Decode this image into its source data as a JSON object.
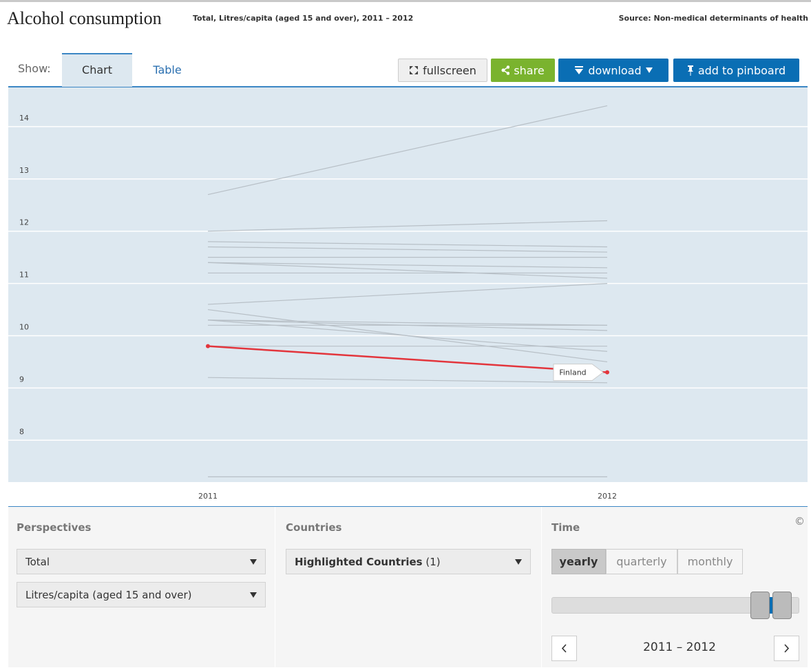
{
  "header": {
    "title": "Alcohol consumption",
    "subtitle": "Total, Litres/capita (aged 15 and over), 2011 – 2012",
    "source": "Source: Non-medical determinants of health"
  },
  "toolbar": {
    "show_label": "Show:",
    "tabs": [
      "Chart",
      "Table"
    ],
    "buttons": [
      "fullscreen",
      "share",
      "download",
      "add to pinboard"
    ]
  },
  "chart_data": {
    "type": "line",
    "categories": [
      "2011",
      "2012"
    ],
    "ylim": [
      7.2,
      14.75
    ],
    "yticks": [
      8,
      9,
      10,
      11,
      12,
      13,
      14
    ],
    "grid": true,
    "series": [
      {
        "color": "#b7bfc6",
        "values": [
          12.7,
          14.4
        ]
      },
      {
        "color": "#b7bfc6",
        "values": [
          12.0,
          12.2
        ]
      },
      {
        "color": "#b7bfc6",
        "values": [
          11.8,
          11.7
        ]
      },
      {
        "color": "#b7bfc6",
        "values": [
          11.7,
          11.6
        ]
      },
      {
        "color": "#b7bfc6",
        "values": [
          11.5,
          11.5
        ]
      },
      {
        "color": "#b7bfc6",
        "values": [
          11.4,
          11.3
        ]
      },
      {
        "color": "#b7bfc6",
        "values": [
          11.4,
          11.1
        ]
      },
      {
        "color": "#b7bfc6",
        "values": [
          11.2,
          11.2
        ]
      },
      {
        "color": "#b7bfc6",
        "values": [
          10.6,
          11.0
        ]
      },
      {
        "color": "#b7bfc6",
        "values": [
          10.5,
          9.5
        ]
      },
      {
        "color": "#b7bfc6",
        "values": [
          10.3,
          10.2
        ]
      },
      {
        "color": "#b7bfc6",
        "values": [
          10.3,
          10.1
        ]
      },
      {
        "color": "#b7bfc6",
        "values": [
          10.2,
          10.2
        ]
      },
      {
        "color": "#b7bfc6",
        "values": [
          10.3,
          9.7
        ]
      },
      {
        "color": "#b7bfc6",
        "values": [
          9.8,
          9.8
        ]
      },
      {
        "color": "#b7bfc6",
        "values": [
          9.2,
          9.1
        ]
      },
      {
        "color": "#b7bfc6",
        "values": [
          7.3,
          7.3
        ]
      },
      {
        "name": "Finland",
        "color": "#e3353c",
        "values": [
          9.8,
          9.3
        ],
        "highlight": true
      }
    ]
  },
  "controls": {
    "perspectives": {
      "label": "Perspectives",
      "options": [
        "Total",
        "Litres/capita (aged 15 and over)"
      ]
    },
    "countries": {
      "label": "Countries",
      "selection": "Highlighted Countries",
      "count": "(1)"
    },
    "time": {
      "label": "Time",
      "modes": [
        "yearly",
        "quarterly",
        "monthly"
      ],
      "range": "2011 – 2012"
    },
    "copyright": "©"
  }
}
